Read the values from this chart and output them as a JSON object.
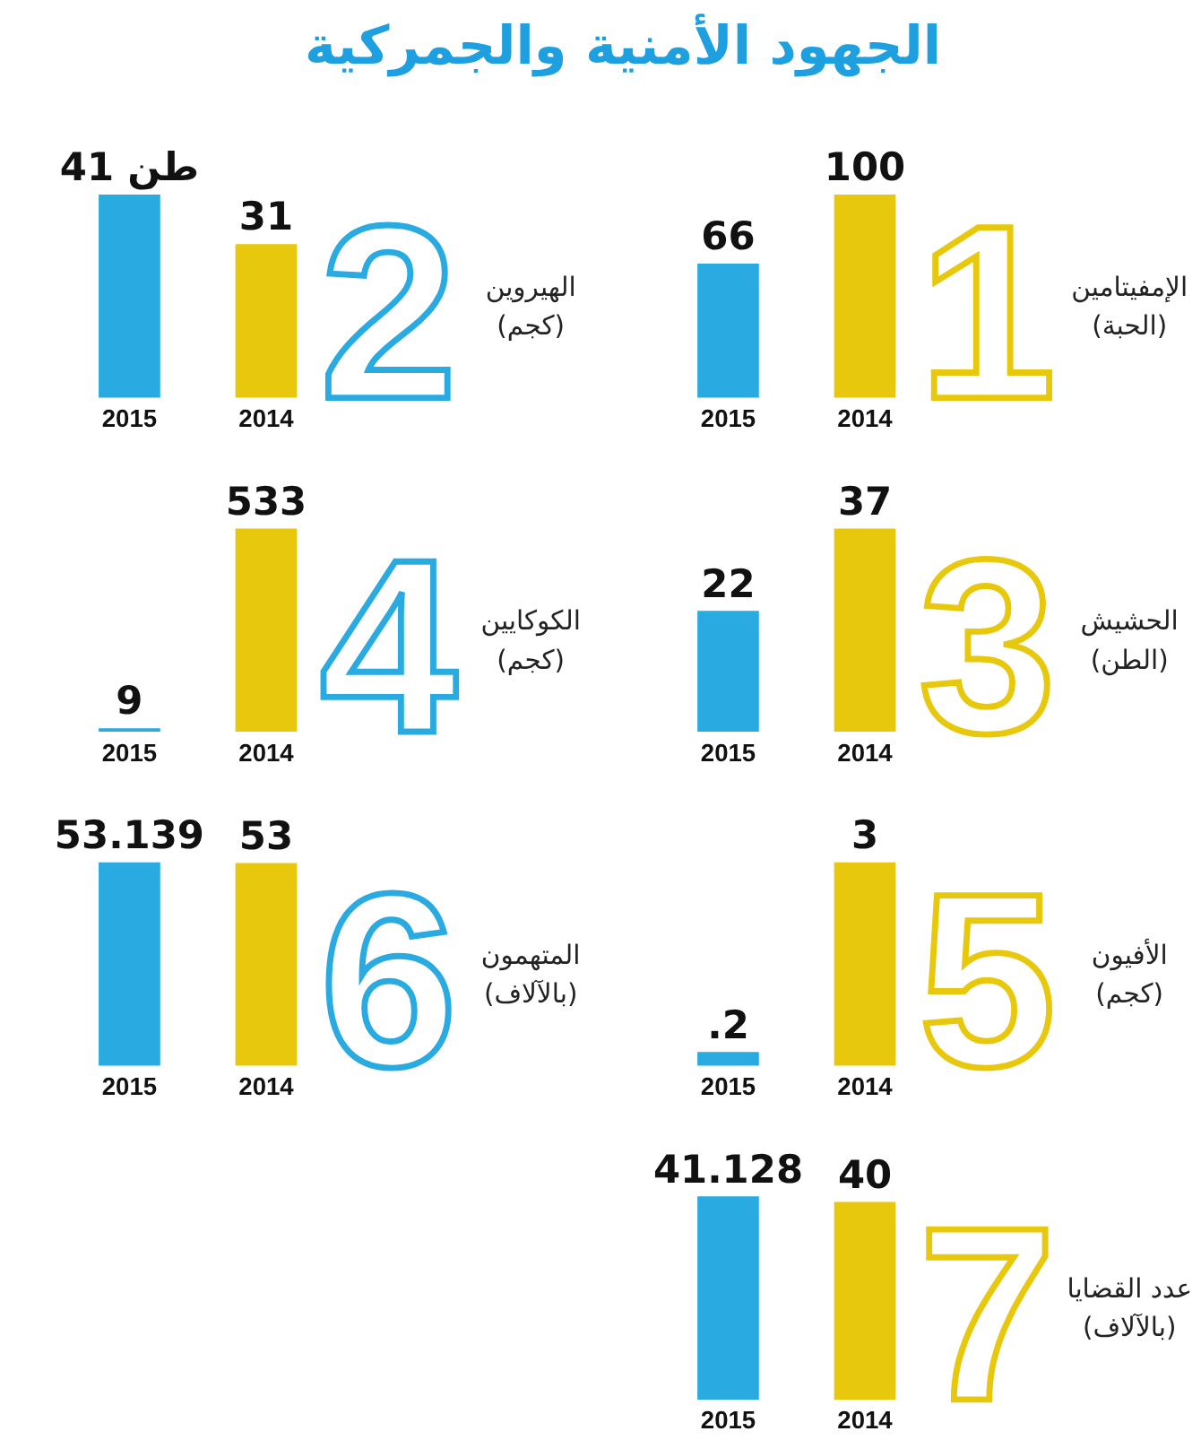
{
  "chart_data": [
    {
      "type": "bar",
      "title": "الجهود الأمنية والجمركية",
      "ylabel": "الإمفيتامين\n(الحبة)",
      "categories": [
        "2015",
        "2014"
      ],
      "values": [
        66,
        100
      ],
      "colors": [
        "#29abe2",
        "#e8c80c"
      ],
      "data_labels": true,
      "tick_labels": "x",
      "annotations": [
        "1"
      ]
    },
    {
      "type": "bar",
      "ylabel": "الهيروين\n(كجم)",
      "categories": [
        "2015",
        "2014"
      ],
      "values": [
        41,
        31
      ],
      "colors": [
        "#29abe2",
        "#e8c80c"
      ],
      "value_labels": [
        "41 طن",
        "31"
      ],
      "tick_labels": "x",
      "annotations": [
        "2"
      ]
    },
    {
      "type": "bar",
      "ylabel": "الحشيش\n(الطن)",
      "categories": [
        "2015",
        "2014"
      ],
      "values": [
        22,
        37
      ],
      "colors": [
        "#29abe2",
        "#e8c80c"
      ],
      "data_labels": true,
      "tick_labels": "x",
      "annotations": [
        "3"
      ]
    },
    {
      "type": "bar",
      "ylabel": "الكوكايين\n(كجم)",
      "categories": [
        "2015",
        "2014"
      ],
      "values": [
        9,
        533
      ],
      "colors": [
        "#29abe2",
        "#e8c80c"
      ],
      "data_labels": true,
      "tick_labels": "x",
      "annotations": [
        "4"
      ]
    },
    {
      "type": "bar",
      "ylabel": "الأفيون\n(كجم)",
      "categories": [
        "2015",
        "2014"
      ],
      "values": [
        0.2,
        3
      ],
      "colors": [
        "#29abe2",
        "#e8c80c"
      ],
      "value_labels": [
        ".2",
        "3"
      ],
      "tick_labels": "x",
      "annotations": [
        "5"
      ]
    },
    {
      "type": "bar",
      "ylabel": "المتهمون\n(بالآلاف)",
      "categories": [
        "2015",
        "2014"
      ],
      "values": [
        53.139,
        53
      ],
      "colors": [
        "#29abe2",
        "#e8c80c"
      ],
      "data_labels": true,
      "tick_labels": "x",
      "annotations": [
        "6"
      ]
    },
    {
      "type": "bar",
      "ylabel": "عدد القضايا\n(بالآلاف)",
      "categories": [
        "2015",
        "2014"
      ],
      "values": [
        41.128,
        40
      ],
      "colors": [
        "#29abe2",
        "#e8c80c"
      ],
      "data_labels": true,
      "tick_labels": "x",
      "annotations": [
        "7"
      ]
    }
  ]
}
